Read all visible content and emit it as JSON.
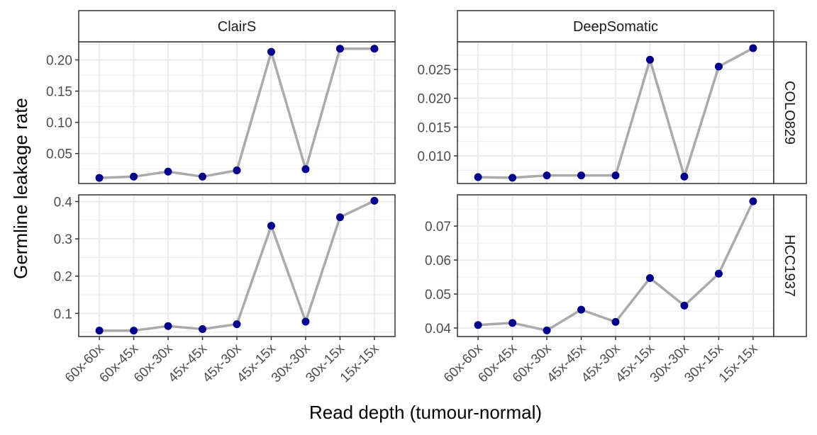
{
  "chart_data": {
    "type": "line",
    "xlabel": "Read depth (tumour-normal)",
    "ylabel": "Germline leakage rate",
    "categories": [
      "60x-60x",
      "60x-45x",
      "60x-30x",
      "45x-45x",
      "45x-30x",
      "45x-15x",
      "30x-30x",
      "30x-15x",
      "15x-15x"
    ],
    "col_facets": [
      "ClairS",
      "DeepSomatic"
    ],
    "row_facets": [
      "COLO829",
      "HCC1937"
    ],
    "colors": {
      "point": "#00008B",
      "line": "#AAAAAA",
      "strip_bg": "#FFFFFF",
      "grid": "#EBEBEB"
    },
    "panels": [
      {
        "col": "ClairS",
        "row": "COLO829",
        "ylim": [
          0.002,
          0.229
        ],
        "yticks": [
          0.05,
          0.1,
          0.15,
          0.2
        ],
        "ytick_labels": [
          "0.05",
          "0.10",
          "0.15",
          "0.20"
        ],
        "values": [
          0.011,
          0.013,
          0.021,
          0.013,
          0.023,
          0.213,
          0.025,
          0.218,
          0.218
        ]
      },
      {
        "col": "DeepSomatic",
        "row": "COLO829",
        "ylim": [
          0.0052,
          0.0298
        ],
        "yticks": [
          0.01,
          0.015,
          0.02,
          0.025
        ],
        "ytick_labels": [
          "0.010",
          "0.015",
          "0.020",
          "0.025"
        ],
        "values": [
          0.0063,
          0.0062,
          0.0066,
          0.0066,
          0.0066,
          0.0267,
          0.0064,
          0.0255,
          0.0287
        ]
      },
      {
        "col": "ClairS",
        "row": "HCC1937",
        "ylim": [
          0.038,
          0.418
        ],
        "yticks": [
          0.1,
          0.2,
          0.3,
          0.4
        ],
        "ytick_labels": [
          "0.1",
          "0.2",
          "0.3",
          "0.4"
        ],
        "values": [
          0.054,
          0.054,
          0.066,
          0.058,
          0.071,
          0.335,
          0.078,
          0.358,
          0.402
        ]
      },
      {
        "col": "DeepSomatic",
        "row": "HCC1937",
        "ylim": [
          0.0375,
          0.0792
        ],
        "yticks": [
          0.04,
          0.05,
          0.06,
          0.07
        ],
        "ytick_labels": [
          "0.04",
          "0.05",
          "0.06",
          "0.07"
        ],
        "values": [
          0.0409,
          0.0415,
          0.0393,
          0.0454,
          0.0418,
          0.0547,
          0.0466,
          0.056,
          0.0773
        ]
      }
    ]
  }
}
